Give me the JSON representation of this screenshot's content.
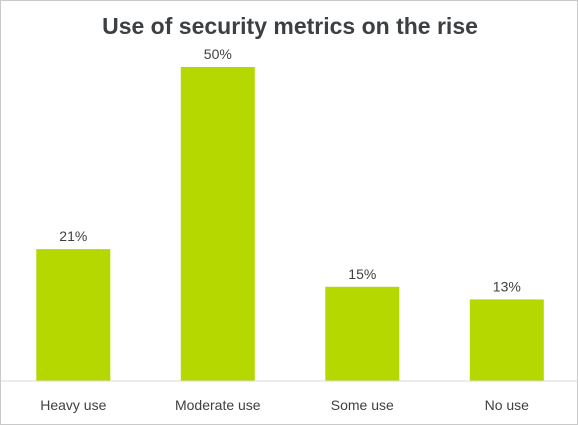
{
  "chart_data": {
    "type": "bar",
    "title": "Use of security metrics on the rise",
    "categories": [
      "Heavy use",
      "Moderate use",
      "Some use",
      "No use"
    ],
    "values": [
      21,
      50,
      15,
      13
    ],
    "value_labels": [
      "21%",
      "50%",
      "15%",
      "13%"
    ],
    "ylim": [
      0,
      50
    ],
    "grid": false,
    "legend": "none",
    "bar_color": "#b4d800",
    "axis_color": "#d9d9d9"
  }
}
